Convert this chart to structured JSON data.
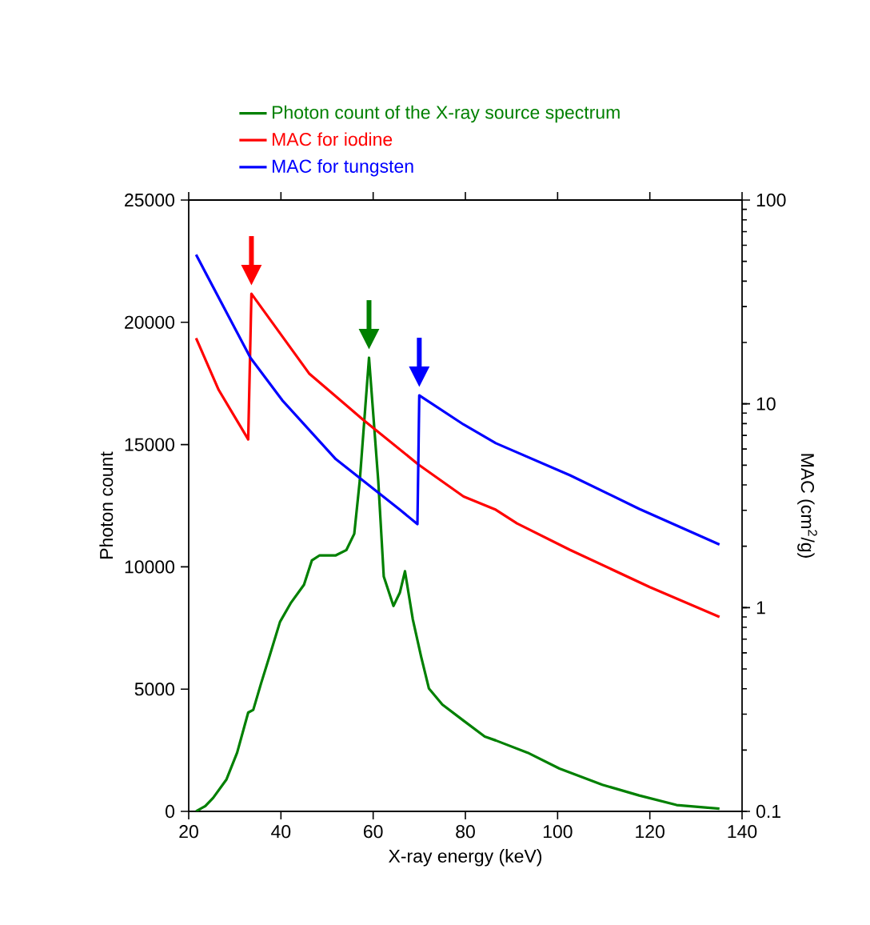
{
  "chart_data": {
    "type": "line",
    "xlabel": "X-ray energy (keV)",
    "ylabel": "Photon count",
    "y2label": "MAC (cm$^{2}$/g)",
    "xlim": [
      20,
      140
    ],
    "xticks": [
      20,
      40,
      60,
      80,
      100,
      120,
      140
    ],
    "ylim": [
      0,
      25000
    ],
    "yticks": [
      0,
      5000,
      10000,
      15000,
      20000,
      25000
    ],
    "y2lim": [
      0.1,
      100
    ],
    "y2ticks": [
      0.1,
      1,
      10,
      100
    ],
    "log": "y2",
    "legend": "top",
    "marker": "none",
    "line_style": "solid",
    "series": [
      {
        "name": "Photon count of the X-ray source spectrum",
        "color": "#008000",
        "x": [
          21.6,
          23.6,
          25.3,
          28.2,
          30.5,
          32.9,
          34.0,
          35.7,
          37.5,
          39.8,
          42.1,
          45.0,
          46.7,
          48.4,
          51.9,
          54.2,
          55.9,
          57.1,
          59.1,
          61.1,
          62.3,
          64.4,
          65.8,
          66.9,
          68.6,
          70.4,
          72.1,
          75.0,
          79.6,
          84.2,
          86.6,
          93.5,
          100.4,
          109.7,
          117.7,
          125.8,
          135.1
        ],
        "values": [
          0,
          220,
          550,
          1310,
          2400,
          4040,
          4150,
          5240,
          6330,
          7750,
          8510,
          9270,
          10260,
          10470,
          10470,
          10690,
          11350,
          13530,
          18550,
          13530,
          9600,
          8400,
          8950,
          9820,
          7850,
          6330,
          5020,
          4370,
          3710,
          3060,
          2900,
          2400,
          1750,
          1090,
          650,
          260,
          110
        ]
      },
      {
        "name": "MAC for iodine",
        "color": "#ff0000",
        "axis": "y2",
        "x": [
          21.6,
          26.5,
          32.9,
          33.6,
          46.1,
          57.7,
          69.8,
          79.6,
          86.6,
          91.2,
          102.7,
          120,
          135.1
        ],
        "values": [
          21.0,
          11.7,
          6.69,
          34.7,
          14.1,
          8.4,
          5.04,
          3.51,
          3.02,
          2.59,
          1.92,
          1.26,
          0.9
        ]
      },
      {
        "name": "MAC for tungsten",
        "color": "#0000ff",
        "axis": "y2",
        "x": [
          21.6,
          33.4,
          40.3,
          51.9,
          65.8,
          69.6,
          70.0,
          79.6,
          86.6,
          102.7,
          117.7,
          135.1
        ],
        "values": [
          53.9,
          16.8,
          10.4,
          5.35,
          3.02,
          2.57,
          11.0,
          7.92,
          6.41,
          4.46,
          3.05,
          2.04
        ]
      }
    ]
  }
}
